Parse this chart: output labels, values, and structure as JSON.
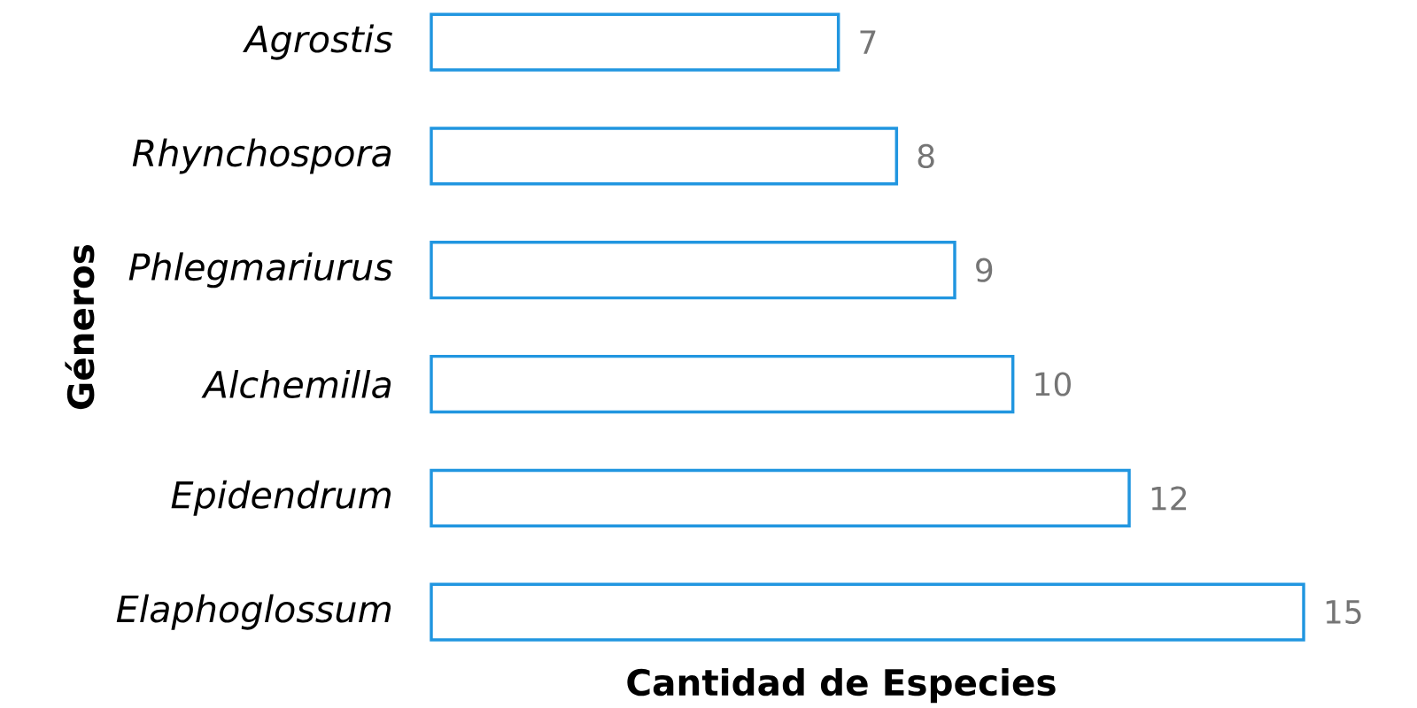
{
  "chart_data": {
    "type": "bar",
    "orientation": "horizontal",
    "xlabel": "Cantidad de Especies",
    "ylabel": "Géneros",
    "categories": [
      "Agrostis",
      "Rhynchospora",
      "Phlegmariurus",
      "Alchemilla",
      "Epidendrum",
      "Elaphoglossum"
    ],
    "values": [
      7,
      8,
      9,
      10,
      12,
      15
    ],
    "color": "#2196e0",
    "data_labels": true
  }
}
